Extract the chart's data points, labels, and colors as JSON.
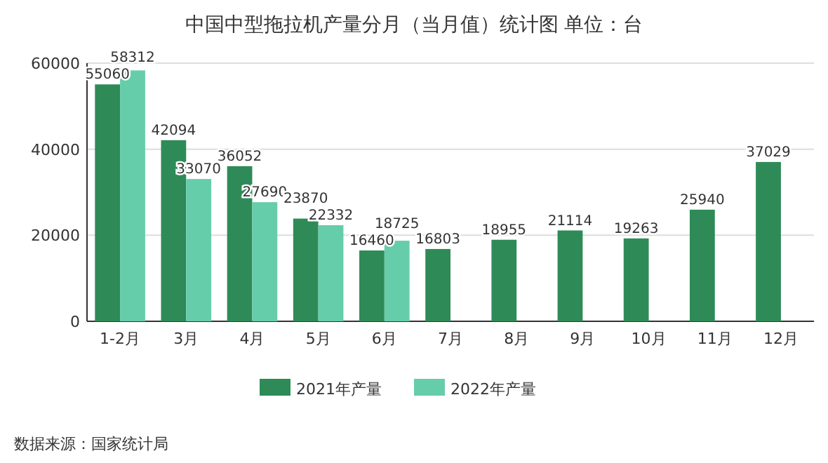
{
  "chart_data": {
    "type": "bar",
    "title": "中国中型拖拉机产量分月（当月值）统计图 单位：台",
    "categories": [
      "1-2月",
      "3月",
      "4月",
      "5月",
      "6月",
      "7月",
      "8月",
      "9月",
      "10月",
      "11月",
      "12月"
    ],
    "series": [
      {
        "name": "2021年产量",
        "color": "#2e8b57",
        "values": [
          55060,
          42094,
          36052,
          23870,
          16460,
          16803,
          18955,
          21114,
          19263,
          25940,
          37029
        ]
      },
      {
        "name": "2022年产量",
        "color": "#66cdaa",
        "values": [
          58312,
          33070,
          27690,
          22332,
          18725,
          null,
          null,
          null,
          null,
          null,
          null
        ]
      }
    ],
    "ylim": [
      0,
      60000
    ],
    "yticks": [
      0,
      20000,
      40000,
      60000
    ],
    "grid": "y",
    "legend": "bottom",
    "data_labels": true,
    "annotations": [
      "数据来源：国家统计局"
    ]
  }
}
